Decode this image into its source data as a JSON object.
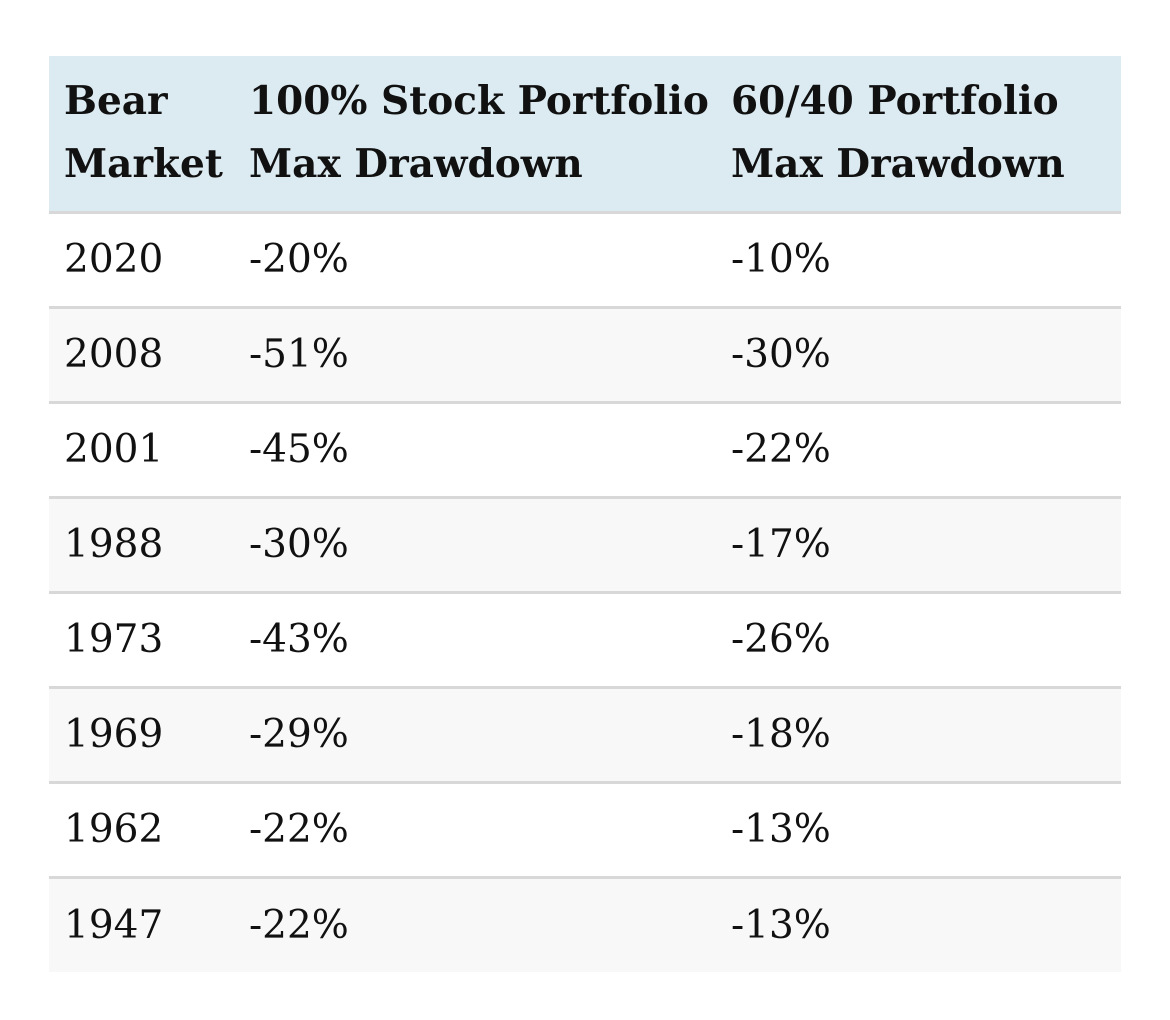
{
  "table": {
    "headers": [
      [
        "Bear",
        "Market"
      ],
      [
        "100% Stock Portfolio",
        "Max Drawdown"
      ],
      [
        "60/40 Portfolio",
        "Max Drawdown"
      ]
    ],
    "rows": [
      [
        "2020",
        "-20%",
        "-10%"
      ],
      [
        "2008",
        "-51%",
        "-30%"
      ],
      [
        "2001",
        "-45%",
        "-22%"
      ],
      [
        "1988",
        "-30%",
        "-17%"
      ],
      [
        "1973",
        "-43%",
        "-26%"
      ],
      [
        "1969",
        "-29%",
        "-18%"
      ],
      [
        "1962",
        "-22%",
        "-13%"
      ],
      [
        "1947",
        "-22%",
        "-13%"
      ]
    ]
  },
  "colors": {
    "header_background": "#dcebf2",
    "row_stripe": "#f8f8f8",
    "row_divider": "#d8d8d8"
  }
}
